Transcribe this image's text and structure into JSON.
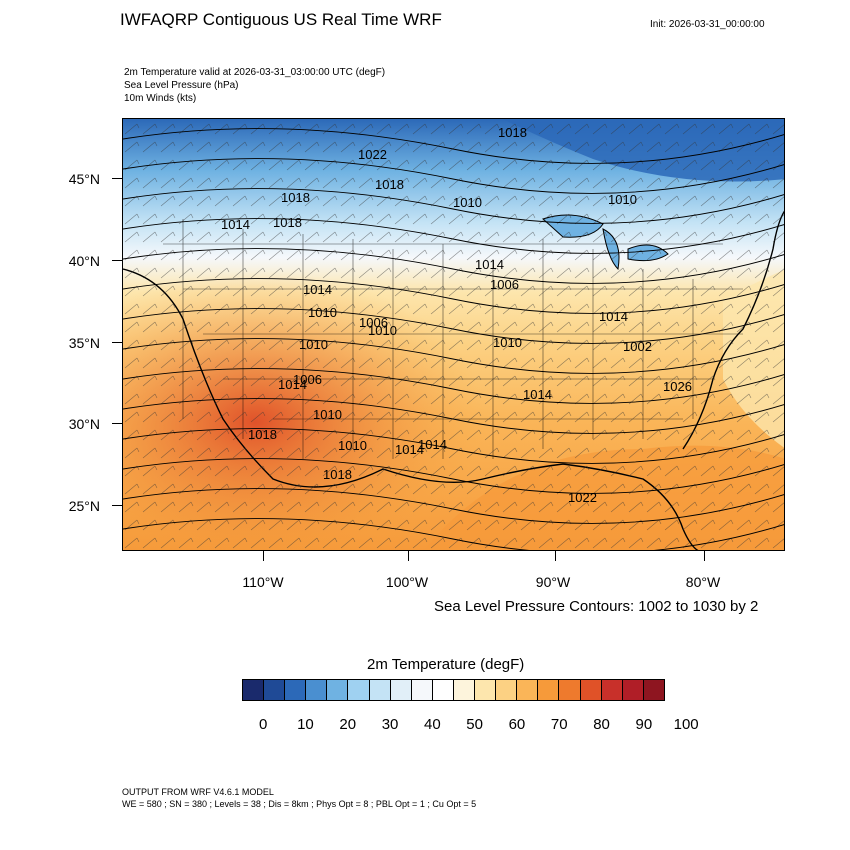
{
  "header": {
    "title": "IWFAQRP Contiguous US Real Time WRF",
    "init": "Init: 2026-03-31_00:00:00"
  },
  "subtitle": {
    "line1": "2m Temperature valid at 2026-03-31_03:00:00 UTC   (degF)",
    "line2": "Sea Level Pressure   (hPa)",
    "line3": "10m Winds   (kts)"
  },
  "map": {
    "lat_labels": [
      "45°N",
      "40°N",
      "35°N",
      "30°N",
      "25°N"
    ],
    "lon_labels": [
      "110°W",
      "100°W",
      "90°W",
      "80°W"
    ],
    "pressure_labels": [
      "1018",
      "1022",
      "1018",
      "1018",
      "1018",
      "1010",
      "1014",
      "1010",
      "1014",
      "1014",
      "1010",
      "1006",
      "1006",
      "1010",
      "1010",
      "1014",
      "1010",
      "1002",
      "1006",
      "1014",
      "1018",
      "1026",
      "1014",
      "1010",
      "1014",
      "1018",
      "1022",
      "1014",
      "1010"
    ],
    "colors": {
      "cold": "#2b6cb0",
      "mild": "#f4f1ea",
      "warm": "#f5a53e",
      "hot": "#e0522a"
    }
  },
  "contour_note": "Sea Level Pressure Contours: 1002 to 1030 by 2",
  "colorbar": {
    "title": "2m Temperature  (degF)",
    "colors": [
      "#1a2a6c",
      "#1f4a96",
      "#2c69b8",
      "#4a8fd0",
      "#6fb2e2",
      "#9fd1f1",
      "#c4e3f5",
      "#e1eff8",
      "#f5f8fb",
      "#ffffff",
      "#fdf4dc",
      "#fde6ad",
      "#fcd183",
      "#fab558",
      "#f69a3a",
      "#ee7a2d",
      "#e05228",
      "#c8302a",
      "#b01e27",
      "#8e1520"
    ],
    "labels": [
      "0",
      "10",
      "20",
      "30",
      "40",
      "50",
      "60",
      "70",
      "80",
      "90",
      "100"
    ]
  },
  "footer": {
    "line1": "OUTPUT FROM WRF V4.6.1 MODEL",
    "line2": "WE = 580 ; SN = 380 ; Levels = 38 ; Dis = 8km ; Phys Opt = 8 ; PBL Opt = 1 ; Cu Opt = 5"
  }
}
